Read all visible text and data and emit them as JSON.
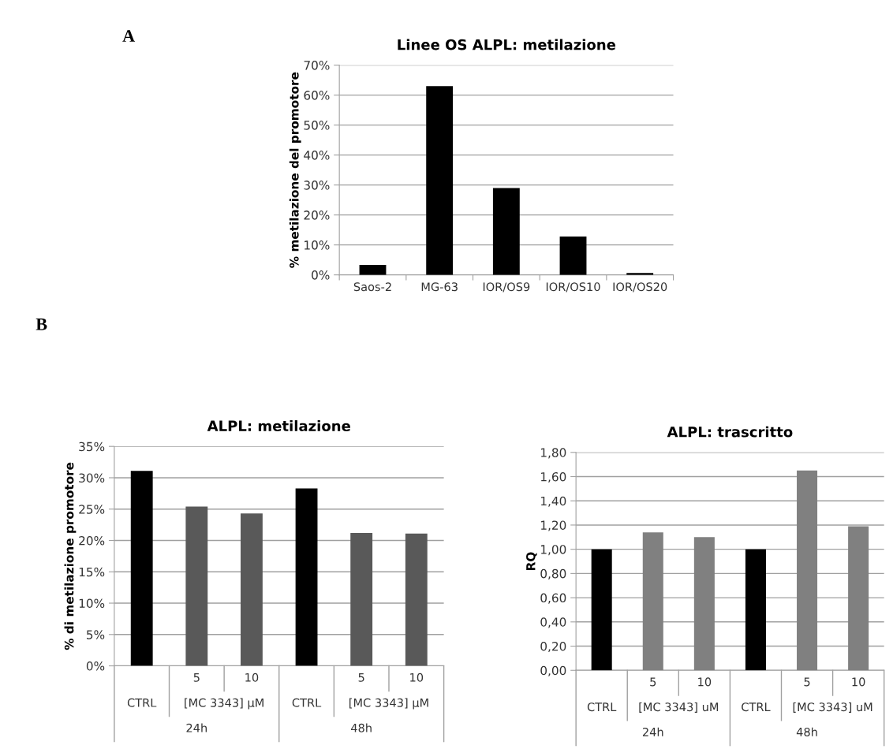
{
  "chart_data": [
    {
      "type": "bar",
      "title": "Linee OS ALPL: metilazione",
      "ylabel": "% metilazione del promotore",
      "categories": [
        "Saos-2",
        "MG-63",
        "IOR/OS9",
        "IOR/OS10",
        "IOR/OS20"
      ],
      "values": [
        3.3,
        63,
        29,
        12.8,
        0.6
      ],
      "colors": [
        "#000000",
        "#000000",
        "#000000",
        "#000000",
        "#000000"
      ],
      "ylim": [
        0,
        70
      ],
      "yticks": [
        {
          "value": 0,
          "label": "0%"
        },
        {
          "value": 10,
          "label": "10%"
        },
        {
          "value": 20,
          "label": "20%"
        },
        {
          "value": 30,
          "label": "30%"
        },
        {
          "value": 40,
          "label": "40%"
        },
        {
          "value": 50,
          "label": "50%"
        },
        {
          "value": 60,
          "label": "60%"
        },
        {
          "value": 70,
          "label": "70%"
        }
      ],
      "grid": "y",
      "annotations": [
        "A"
      ]
    },
    {
      "type": "bar",
      "title": "ALPL: metilazione",
      "ylabel": "% di metilazione promotore",
      "categories": [
        "CTRL",
        "5",
        "10",
        "CTRL",
        "5",
        "10"
      ],
      "values": [
        31.1,
        25.4,
        24.3,
        28.3,
        21.2,
        21.1
      ],
      "colors": [
        "#000000",
        "#595959",
        "#595959",
        "#000000",
        "#595959",
        "#595959"
      ],
      "ylim": [
        0,
        35
      ],
      "yticks": [
        {
          "value": 0,
          "label": "0%"
        },
        {
          "value": 5,
          "label": "5%"
        },
        {
          "value": 10,
          "label": "10%"
        },
        {
          "value": 15,
          "label": "15%"
        },
        {
          "value": 20,
          "label": "20%"
        },
        {
          "value": 25,
          "label": "25%"
        },
        {
          "value": 30,
          "label": "30%"
        },
        {
          "value": 35,
          "label": "35%"
        }
      ],
      "grid": "y",
      "annotations": [
        "[MC 3343] µM",
        "[MC 3343] µM",
        "24h",
        "48h",
        "B"
      ]
    },
    {
      "type": "bar",
      "title": "ALPL: trascritto",
      "ylabel": "RQ",
      "categories": [
        "CTRL",
        "5",
        "10",
        "CTRL",
        "5",
        "10"
      ],
      "values": [
        1.0,
        1.14,
        1.1,
        1.0,
        1.65,
        1.19
      ],
      "colors": [
        "#000000",
        "#808080",
        "#808080",
        "#000000",
        "#808080",
        "#808080"
      ],
      "ylim": [
        0,
        1.8
      ],
      "yticks": [
        {
          "value": 0,
          "label": "0,00"
        },
        {
          "value": 0.2,
          "label": "0,20"
        },
        {
          "value": 0.4,
          "label": "0,40"
        },
        {
          "value": 0.6,
          "label": "0,60"
        },
        {
          "value": 0.8,
          "label": "0,80"
        },
        {
          "value": 1.0,
          "label": "1,00"
        },
        {
          "value": 1.2,
          "label": "1,20"
        },
        {
          "value": 1.4,
          "label": "1,40"
        },
        {
          "value": 1.6,
          "label": "1,60"
        },
        {
          "value": 1.8,
          "label": "1,80"
        }
      ],
      "grid": "y",
      "annotations": [
        "[MC 3343] uM",
        "[MC 3343] uM",
        "24h",
        "48h"
      ]
    }
  ]
}
